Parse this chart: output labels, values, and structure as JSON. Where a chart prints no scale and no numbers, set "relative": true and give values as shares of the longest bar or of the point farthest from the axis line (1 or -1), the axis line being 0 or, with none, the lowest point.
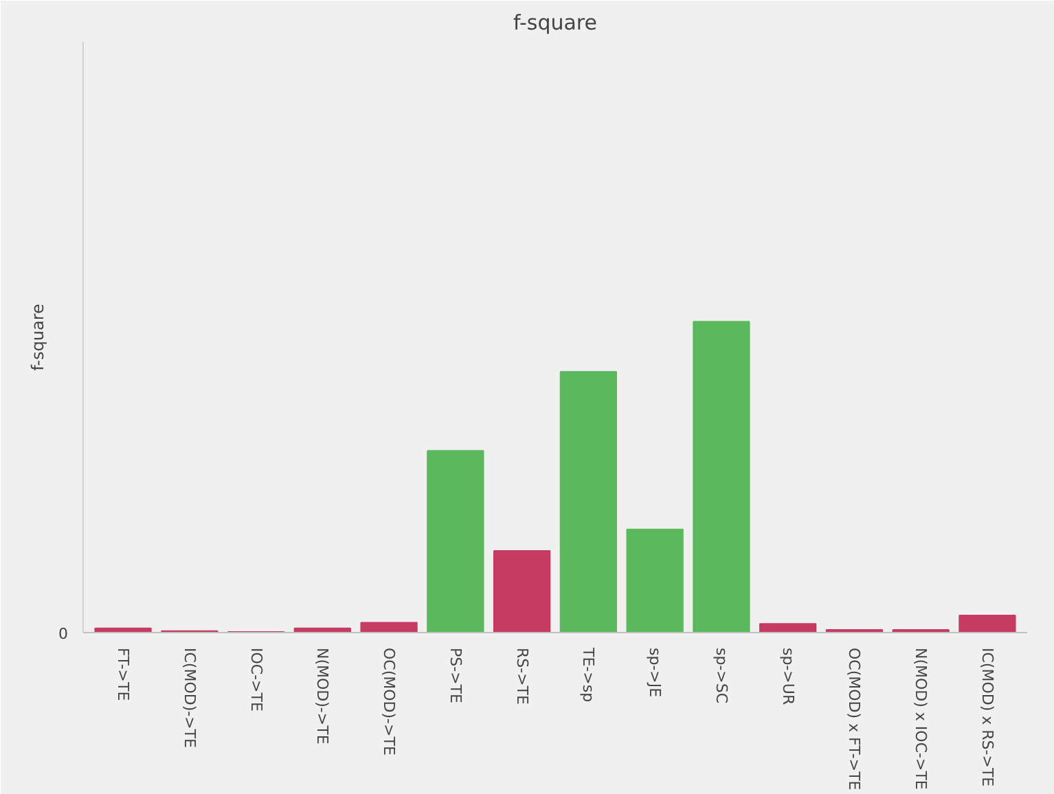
{
  "chart_data": {
    "type": "bar",
    "title": "f-square",
    "ylabel": "f-square",
    "relative": true,
    "categories": [
      "FT->TE",
      "IC(MOD)->TE",
      "IOC->TE",
      "N(MOD)->TE",
      "OC(MOD)->TE",
      "PS->TE",
      "RS->TE",
      "TE->sp",
      "sp->JE",
      "sp->SC",
      "sp->UR",
      "OC(MOD) x FT->TE",
      "N(MOD) x IOC->TE",
      "IC(MOD) x RS->TE"
    ],
    "values": [
      0.014,
      0.005,
      0.002,
      0.014,
      0.032,
      0.585,
      0.263,
      0.839,
      0.332,
      1,
      0.028,
      0.009,
      0.009,
      0.055
    ],
    "colors": [
      "#c63b62",
      "#c63b62",
      "#c63b62",
      "#c63b62",
      "#c63b62",
      "#5cb85c",
      "#c63b62",
      "#5cb85c",
      "#5cb85c",
      "#5cb85c",
      "#c63b62",
      "#c63b62",
      "#c63b62",
      "#c63b62"
    ],
    "annotations": [
      "0"
    ]
  }
}
